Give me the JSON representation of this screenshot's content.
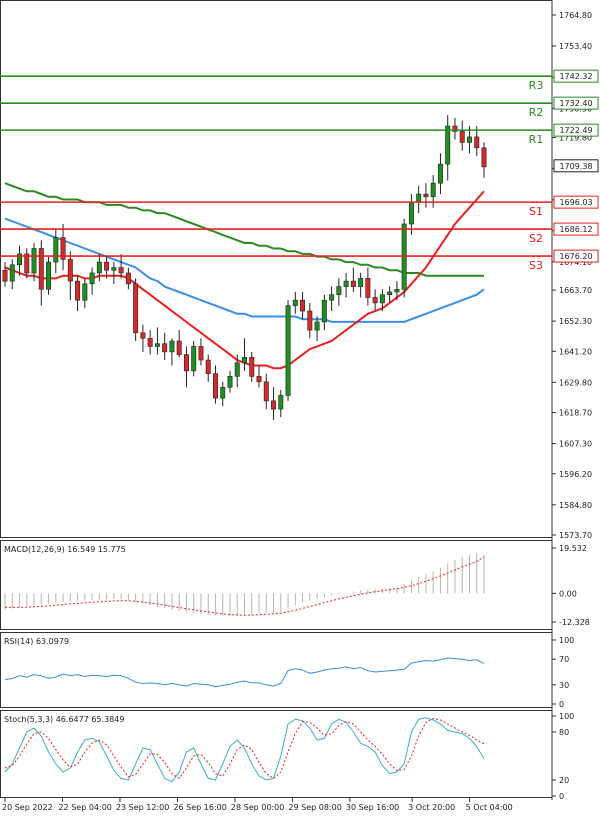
{
  "chart_data": [
    {
      "type": "candlestick",
      "panel": "price",
      "x_ticks": [
        "20 Sep 2022",
        "22 Sep 04:00",
        "23 Sep 12:00",
        "26 Sep 16:00",
        "28 Sep 00:00",
        "29 Sep 08:00",
        "30 Sep 16:00",
        "3 Oct 20:00",
        "5 Oct 04:00"
      ],
      "y_ticks": [
        1764.8,
        1753.4,
        1741.9,
        1730.5,
        1719.8,
        1708.4,
        1696.9,
        1685.5,
        1674.1,
        1663.7,
        1652.3,
        1641.2,
        1629.8,
        1618.7,
        1607.3,
        1596.2,
        1584.8,
        1573.7
      ],
      "ylim": [
        1573.7,
        1764.8
      ],
      "candles": [
        [
          1671,
          1674,
          1665,
          1667
        ],
        [
          1667,
          1675,
          1664,
          1673
        ],
        [
          1673,
          1680,
          1669,
          1677
        ],
        [
          1677,
          1679,
          1668,
          1670
        ],
        [
          1670,
          1681,
          1667,
          1679
        ],
        [
          1679,
          1682,
          1658,
          1664
        ],
        [
          1664,
          1676,
          1662,
          1674
        ],
        [
          1674,
          1686,
          1670,
          1683
        ],
        [
          1683,
          1688,
          1671,
          1675
        ],
        [
          1675,
          1678,
          1660,
          1667
        ],
        [
          1667,
          1669,
          1656,
          1660
        ],
        [
          1660,
          1668,
          1657,
          1666
        ],
        [
          1666,
          1672,
          1662,
          1670
        ],
        [
          1670,
          1677,
          1667,
          1674
        ],
        [
          1674,
          1676,
          1668,
          1671
        ],
        [
          1671,
          1674,
          1666,
          1672
        ],
        [
          1672,
          1677,
          1668,
          1670
        ],
        [
          1670,
          1672,
          1664,
          1666
        ],
        [
          1666,
          1668,
          1645,
          1648
        ],
        [
          1648,
          1651,
          1641,
          1646
        ],
        [
          1646,
          1649,
          1640,
          1643
        ],
        [
          1643,
          1650,
          1640,
          1644
        ],
        [
          1644,
          1648,
          1638,
          1641
        ],
        [
          1641,
          1646,
          1636,
          1645
        ],
        [
          1645,
          1649,
          1639,
          1640
        ],
        [
          1640,
          1643,
          1628,
          1634
        ],
        [
          1634,
          1645,
          1632,
          1643
        ],
        [
          1643,
          1646,
          1636,
          1638
        ],
        [
          1638,
          1640,
          1630,
          1633
        ],
        [
          1633,
          1636,
          1622,
          1624
        ],
        [
          1624,
          1630,
          1621,
          1628
        ],
        [
          1628,
          1634,
          1626,
          1632
        ],
        [
          1632,
          1640,
          1628,
          1637
        ],
        [
          1637,
          1646,
          1634,
          1639
        ],
        [
          1639,
          1641,
          1630,
          1632
        ],
        [
          1632,
          1636,
          1628,
          1630
        ],
        [
          1630,
          1633,
          1620,
          1623
        ],
        [
          1623,
          1628,
          1616,
          1620
        ],
        [
          1620,
          1627,
          1617,
          1625
        ],
        [
          1625,
          1660,
          1623,
          1658
        ],
        [
          1658,
          1663,
          1655,
          1660
        ],
        [
          1660,
          1663,
          1653,
          1656
        ],
        [
          1656,
          1659,
          1646,
          1649
        ],
        [
          1649,
          1654,
          1645,
          1652
        ],
        [
          1652,
          1662,
          1649,
          1660
        ],
        [
          1660,
          1665,
          1656,
          1662
        ],
        [
          1662,
          1668,
          1658,
          1665
        ],
        [
          1665,
          1670,
          1661,
          1667
        ],
        [
          1667,
          1672,
          1663,
          1665
        ],
        [
          1665,
          1670,
          1661,
          1668
        ],
        [
          1668,
          1672,
          1658,
          1661
        ],
        [
          1661,
          1664,
          1656,
          1659
        ],
        [
          1659,
          1664,
          1656,
          1662
        ],
        [
          1662,
          1665,
          1659,
          1663
        ],
        [
          1663,
          1667,
          1660,
          1664
        ],
        [
          1664,
          1690,
          1661,
          1688
        ],
        [
          1688,
          1699,
          1684,
          1696
        ],
        [
          1696,
          1702,
          1692,
          1699
        ],
        [
          1699,
          1703,
          1694,
          1698
        ],
        [
          1698,
          1706,
          1694,
          1703
        ],
        [
          1703,
          1714,
          1699,
          1710
        ],
        [
          1710,
          1728,
          1704,
          1724
        ],
        [
          1724,
          1727,
          1719,
          1722
        ],
        [
          1722,
          1726,
          1715,
          1718
        ],
        [
          1718,
          1724,
          1714,
          1720
        ],
        [
          1720,
          1724,
          1713,
          1716
        ],
        [
          1716,
          1718,
          1705,
          1709
        ]
      ],
      "sma_fast_red": [
        1672,
        1671,
        1670,
        1669,
        1669,
        1668,
        1668,
        1668,
        1669,
        1669,
        1669,
        1668,
        1668,
        1669,
        1669,
        1669,
        1669,
        1668,
        1666,
        1664,
        1662,
        1660,
        1658,
        1656,
        1654,
        1652,
        1650,
        1648,
        1646,
        1644,
        1642,
        1640,
        1638,
        1637,
        1636,
        1636,
        1636,
        1635,
        1635,
        1636,
        1638,
        1640,
        1642,
        1643,
        1644,
        1645,
        1647,
        1649,
        1651,
        1653,
        1655,
        1656,
        1657,
        1659,
        1661,
        1663,
        1666,
        1669,
        1672,
        1676,
        1680,
        1684,
        1688,
        1691,
        1694,
        1697,
        1700
      ],
      "sma_mid_blue": [
        1690,
        1689,
        1688,
        1687,
        1686,
        1685,
        1684,
        1683,
        1682,
        1681,
        1680,
        1679,
        1678,
        1677,
        1676,
        1675,
        1674,
        1673,
        1672,
        1670,
        1668,
        1667,
        1665,
        1664,
        1663,
        1662,
        1661,
        1660,
        1659,
        1658,
        1657,
        1656,
        1655,
        1655,
        1654,
        1654,
        1654,
        1654,
        1654,
        1654,
        1654,
        1653,
        1653,
        1653,
        1653,
        1652,
        1652,
        1652,
        1652,
        1652,
        1652,
        1652,
        1652,
        1652,
        1652,
        1652,
        1653,
        1654,
        1655,
        1656,
        1657,
        1658,
        1659,
        1660,
        1661,
        1662,
        1664
      ],
      "sma_slow_green": [
        1703,
        1702,
        1701,
        1700,
        1700,
        1699,
        1698,
        1698,
        1697,
        1697,
        1697,
        1696,
        1696,
        1696,
        1695,
        1695,
        1695,
        1694,
        1694,
        1693,
        1693,
        1692,
        1692,
        1691,
        1690,
        1689,
        1688,
        1687,
        1686,
        1685,
        1684,
        1683,
        1682,
        1681,
        1681,
        1680,
        1680,
        1679,
        1679,
        1678,
        1678,
        1677,
        1677,
        1676,
        1676,
        1675,
        1675,
        1674,
        1674,
        1673,
        1673,
        1672,
        1672,
        1671,
        1671,
        1670,
        1670,
        1670,
        1669,
        1669,
        1669,
        1669,
        1669,
        1669,
        1669,
        1669,
        1669
      ],
      "levels": [
        {
          "name": "R3",
          "value": 1742.32,
          "label": "1742.32"
        },
        {
          "name": "R2",
          "value": 1732.4,
          "label": "1732.40"
        },
        {
          "name": "R1",
          "value": 1722.49,
          "label": "1722.49"
        },
        {
          "name": "S1",
          "value": 1696.03,
          "label": "1696.03"
        },
        {
          "name": "S2",
          "value": 1686.12,
          "label": "1686.12"
        },
        {
          "name": "S3",
          "value": 1676.2,
          "label": "1676.20"
        }
      ],
      "last_price": {
        "value": 1709.38,
        "label": "1709.38"
      }
    },
    {
      "type": "bar",
      "panel": "macd",
      "title": "MACD(12,26,9) 16.549 15.775",
      "y_ticks_labels": [
        "19.532",
        "0.00",
        "-12.328"
      ],
      "ylim": [
        -12.328,
        19.532
      ],
      "values": [
        -7,
        -6.5,
        -6,
        -5.5,
        -5,
        -4.8,
        -4.5,
        -4,
        -3.8,
        -3.6,
        -3.5,
        -3.2,
        -3,
        -2.8,
        -2.6,
        -2.5,
        -2.6,
        -3,
        -3.8,
        -4.5,
        -5.2,
        -5.9,
        -6.5,
        -7,
        -7.5,
        -8,
        -8.5,
        -8.9,
        -9.2,
        -9.5,
        -9.7,
        -9.8,
        -9.6,
        -9.3,
        -9,
        -8.7,
        -8.5,
        -8.4,
        -8,
        -6.5,
        -5,
        -3.8,
        -3.2,
        -2.5,
        -1.8,
        -1,
        -0.4,
        0.2,
        0.8,
        1.3,
        1.6,
        1.8,
        2,
        2.2,
        2.5,
        4,
        5.5,
        7,
        8.3,
        9.5,
        11,
        13,
        14.5,
        15.8,
        16.8,
        17.4,
        16.5
      ],
      "signal": [
        -6,
        -6,
        -6,
        -5.9,
        -5.8,
        -5.6,
        -5.4,
        -5.1,
        -4.8,
        -4.5,
        -4.3,
        -4,
        -3.8,
        -3.6,
        -3.4,
        -3.3,
        -3.2,
        -3.2,
        -3.4,
        -3.7,
        -4.1,
        -4.6,
        -5.1,
        -5.6,
        -6.1,
        -6.6,
        -7.1,
        -7.6,
        -8,
        -8.4,
        -8.8,
        -9.1,
        -9.3,
        -9.4,
        -9.3,
        -9.2,
        -9,
        -8.8,
        -8.5,
        -8,
        -7.3,
        -6.5,
        -5.6,
        -4.8,
        -4,
        -3.2,
        -2.4,
        -1.7,
        -1,
        -0.4,
        0.2,
        0.7,
        1.2,
        1.6,
        2,
        2.6,
        3.3,
        4.2,
        5.2,
        6.3,
        7.5,
        8.8,
        10.1,
        11.4,
        12.6,
        13.7,
        15.775
      ]
    },
    {
      "type": "line",
      "panel": "rsi",
      "title": "RSI(14) 63.0979",
      "y_ticks_labels": [
        "100",
        "70",
        "30",
        "0"
      ],
      "ylim": [
        0,
        100
      ],
      "values": [
        38,
        40,
        44,
        42,
        46,
        44,
        40,
        42,
        47,
        44,
        46,
        43,
        45,
        44,
        43,
        45,
        44,
        40,
        34,
        32,
        33,
        32,
        30,
        32,
        30,
        28,
        32,
        31,
        30,
        27,
        29,
        31,
        34,
        36,
        33,
        33,
        30,
        28,
        32,
        52,
        55,
        53,
        48,
        50,
        53,
        55,
        56,
        58,
        55,
        57,
        52,
        50,
        51,
        52,
        53,
        54,
        64,
        66,
        68,
        67,
        69,
        72,
        71,
        70,
        68,
        69,
        63.0979
      ]
    },
    {
      "type": "line",
      "panel": "stoch",
      "title": "Stoch(5,3,3) 46.6477 65.3849",
      "y_ticks_labels": [
        "100",
        "80",
        "20",
        "0"
      ],
      "ylim": [
        0,
        100
      ],
      "k": [
        30,
        40,
        60,
        80,
        85,
        75,
        55,
        40,
        30,
        35,
        55,
        70,
        72,
        68,
        50,
        32,
        22,
        20,
        40,
        60,
        58,
        40,
        22,
        18,
        30,
        55,
        60,
        40,
        22,
        20,
        40,
        62,
        70,
        60,
        40,
        25,
        20,
        22,
        50,
        90,
        96,
        94,
        85,
        70,
        72,
        90,
        96,
        92,
        80,
        66,
        62,
        55,
        38,
        28,
        30,
        40,
        80,
        96,
        98,
        95,
        90,
        82,
        80,
        78,
        72,
        62,
        46.6477
      ],
      "d": [
        35,
        38,
        50,
        65,
        78,
        80,
        72,
        58,
        45,
        36,
        40,
        55,
        66,
        70,
        64,
        50,
        36,
        24,
        27,
        40,
        53,
        52,
        42,
        28,
        22,
        35,
        50,
        52,
        42,
        28,
        25,
        40,
        58,
        64,
        58,
        42,
        28,
        22,
        30,
        55,
        78,
        93,
        92,
        85,
        76,
        78,
        88,
        93,
        90,
        80,
        70,
        62,
        52,
        40,
        32,
        33,
        50,
        75,
        92,
        97,
        95,
        90,
        85,
        80,
        76,
        70,
        65.3849
      ]
    }
  ]
}
